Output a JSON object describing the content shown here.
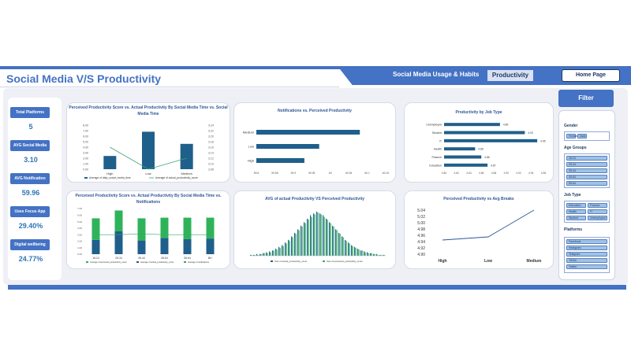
{
  "header": {
    "title": "Social Media V/S Productivity",
    "nav_label": "Social Media Usage & Habits",
    "nav_tab": "Productivity",
    "home_button": "Home Page"
  },
  "colors": {
    "accent": "#4472c4",
    "dark_bar": "#1f5f8b",
    "green": "#2fb35a",
    "line": "#3aa36f"
  },
  "kpis": [
    {
      "label": "Total Platforms",
      "value": "5"
    },
    {
      "label": "AVG Social Media",
      "value": "3.10"
    },
    {
      "label": "AVG Notification",
      "value": "59.96"
    },
    {
      "label": "Uses Focus App",
      "value": "29.40%"
    },
    {
      "label": "Digital wellbeing",
      "value": "24.77%"
    }
  ],
  "filter": {
    "button": "Filter",
    "gender_head": "Gender",
    "gender": [
      "Female",
      "Male"
    ],
    "age_head": "Age Groups",
    "age": [
      "18-24",
      "25-34",
      "35-44",
      "45-54",
      "55-64"
    ],
    "job_head": "Job Type",
    "jobs": [
      "Education",
      "Finance",
      "Health",
      "IT",
      "Student",
      "Unemployed"
    ],
    "platforms_head": "Platforms",
    "platforms": [
      "Facebook",
      "Instagram",
      "Telegram",
      "TikTok",
      "Twitter"
    ]
  },
  "chart_data": [
    {
      "type": "bar",
      "title": "Perceived Productivity Score vs. Actual Productivity By Social Media Time vs. Social Media Time",
      "categories": [
        "High",
        "Low",
        "Medium"
      ],
      "series": [
        {
          "name": "Average of daily_social_media_time",
          "values": [
            2.4,
            6.8,
            4.6
          ]
        },
        {
          "name": "Average of actual_productivity_score",
          "values": [
            3.16,
            3.08,
            3.12
          ]
        }
      ],
      "y_ticks_left": [
        "8.00",
        "7.00",
        "6.00",
        "5.00",
        "4.00",
        "3.00",
        "2.00",
        "1.00",
        "0.00"
      ],
      "y_ticks_right": [
        "3.24",
        "3.22",
        "3.20",
        "3.18",
        "3.16",
        "3.14",
        "3.12",
        "3.10",
        "3.08"
      ]
    },
    {
      "type": "bar",
      "title": "Notifications vs. Perceived Productivity",
      "categories": [
        "Medium",
        "Low",
        "High"
      ],
      "values": [
        60.08,
        59.97,
        59.93
      ],
      "x_ticks": [
        "59.8",
        "59.85",
        "59.9",
        "59.95",
        "60",
        "60.05",
        "60.1",
        "60.15"
      ]
    },
    {
      "type": "bar",
      "title": "Productivity by Job Type",
      "categories": [
        "Unemployed",
        "Student",
        "IT",
        "Health",
        "Finance",
        "Education"
      ],
      "values": [
        4.89,
        4.93,
        4.95,
        4.85,
        4.86,
        4.87
      ],
      "value_labels": [
        "4.89",
        "4.93",
        "4.95",
        "4.85",
        "4.86",
        "4.87"
      ],
      "x_ticks": [
        "4.80",
        "4.82",
        "4.84",
        "4.86",
        "4.88",
        "4.90",
        "4.92",
        "4.94",
        "4.96"
      ]
    },
    {
      "type": "bar",
      "title": "Perceived Productivity Score vs. Actual Productivity By Social Media Time vs. Notifications",
      "categories": [
        "18-24",
        "25-34",
        "35-44",
        "45-54",
        "55-64",
        "65+"
      ],
      "series": [
        {
          "name": "Average of perceived_productivity_score",
          "values": [
            3.3,
            3.2,
            3.4,
            3.1,
            3.3,
            3.2
          ]
        },
        {
          "name": "Average of actual_productivity_score",
          "values": [
            2.2,
            3.5,
            2.1,
            2.5,
            2.3,
            2.4
          ]
        },
        {
          "name": "Average of notifications",
          "values": [
            3.0,
            3.0,
            3.1,
            3.0,
            3.0,
            3.0
          ]
        }
      ]
    },
    {
      "type": "bar",
      "title": "AVG of actual Productivity VS Perceived Productivity",
      "series": [
        {
          "name": "Sum of actual_productivity_score",
          "values": [
            1,
            1,
            2,
            2,
            3,
            4,
            5,
            6,
            8,
            10,
            12,
            15,
            18,
            22,
            26,
            30,
            34,
            38,
            42,
            46,
            48,
            50,
            48,
            46,
            42,
            38,
            34,
            30,
            26,
            22,
            18,
            15,
            12,
            10,
            8,
            6,
            5,
            4,
            3,
            2,
            2,
            1,
            1
          ]
        },
        {
          "name": "Sum of perceived_productivity_score",
          "values": [
            1,
            1,
            1,
            2,
            3,
            3,
            4,
            6,
            7,
            9,
            11,
            14,
            17,
            21,
            25,
            29,
            33,
            37,
            41,
            44,
            47,
            49,
            47,
            44,
            41,
            37,
            33,
            29,
            25,
            21,
            17,
            14,
            11,
            9,
            7,
            6,
            4,
            3,
            3,
            2,
            1,
            1,
            1
          ]
        }
      ]
    },
    {
      "type": "line",
      "title": "Perceived Productivity vs Avg Breaks",
      "categories": [
        "High",
        "Low",
        "Medium"
      ],
      "values": [
        4.945,
        4.955,
        5.05
      ],
      "y_ticks": [
        "5.04",
        "5.02",
        "5.00",
        "4.98",
        "4.96",
        "4.94",
        "4.92",
        "4.90"
      ]
    }
  ]
}
